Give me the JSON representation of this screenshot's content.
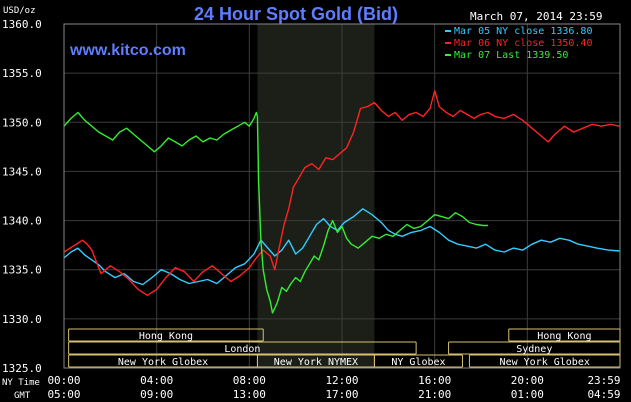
{
  "chart_data": {
    "type": "line",
    "title": "24 Hour Spot Gold (Bid)",
    "unit_label": "USD/oz",
    "watermark": "www.kitco.com",
    "timestamp": "March 07, 2014 23:59",
    "ylim": [
      1325,
      1360
    ],
    "y_ticks": [
      "1360.0",
      "1355.0",
      "1350.0",
      "1345.0",
      "1340.0",
      "1335.0",
      "1330.0",
      "1325.0"
    ],
    "x_row_ny_label": "NY Time",
    "x_row_gmt_label": "GMT",
    "x_ticks_ny": [
      "00:00",
      "04:00",
      "08:00",
      "12:00",
      "16:00",
      "20:00",
      "23:59"
    ],
    "x_ticks_gmt": [
      "05:00",
      "09:00",
      "13:00",
      "17:00",
      "21:00",
      "01:00",
      "04:59"
    ],
    "legend_position": "top-right",
    "highlight_session": [
      8.35,
      13.4
    ],
    "series": [
      {
        "name": "Mar 05 NY close 1336.80",
        "color": "#33ccff",
        "points": [
          [
            0.0,
            1336.2
          ],
          [
            0.3,
            1336.8
          ],
          [
            0.6,
            1337.2
          ],
          [
            0.9,
            1336.5
          ],
          [
            1.2,
            1336.0
          ],
          [
            1.5,
            1335.5
          ],
          [
            1.8,
            1334.8
          ],
          [
            2.2,
            1334.2
          ],
          [
            2.6,
            1334.6
          ],
          [
            3.0,
            1333.8
          ],
          [
            3.4,
            1333.5
          ],
          [
            3.8,
            1334.2
          ],
          [
            4.2,
            1335.0
          ],
          [
            4.6,
            1334.6
          ],
          [
            5.0,
            1334.0
          ],
          [
            5.4,
            1333.6
          ],
          [
            5.8,
            1333.8
          ],
          [
            6.2,
            1334.0
          ],
          [
            6.6,
            1333.6
          ],
          [
            7.0,
            1334.4
          ],
          [
            7.4,
            1335.2
          ],
          [
            7.8,
            1335.6
          ],
          [
            8.2,
            1336.6
          ],
          [
            8.5,
            1338.0
          ],
          [
            8.8,
            1337.2
          ],
          [
            9.1,
            1336.4
          ],
          [
            9.4,
            1337.0
          ],
          [
            9.7,
            1338.0
          ],
          [
            10.0,
            1336.6
          ],
          [
            10.3,
            1337.2
          ],
          [
            10.6,
            1338.4
          ],
          [
            10.9,
            1339.6
          ],
          [
            11.2,
            1340.2
          ],
          [
            11.5,
            1339.4
          ],
          [
            11.8,
            1339.0
          ],
          [
            12.1,
            1339.8
          ],
          [
            12.5,
            1340.4
          ],
          [
            12.9,
            1341.2
          ],
          [
            13.3,
            1340.6
          ],
          [
            13.7,
            1339.8
          ],
          [
            14.0,
            1339.0
          ],
          [
            14.3,
            1338.6
          ],
          [
            14.6,
            1338.4
          ],
          [
            15.0,
            1338.8
          ],
          [
            15.4,
            1339.0
          ],
          [
            15.8,
            1339.4
          ],
          [
            16.2,
            1338.8
          ],
          [
            16.6,
            1338.0
          ],
          [
            17.0,
            1337.6
          ],
          [
            17.4,
            1337.4
          ],
          [
            17.8,
            1337.2
          ],
          [
            18.2,
            1337.6
          ],
          [
            18.6,
            1337.0
          ],
          [
            19.0,
            1336.8
          ],
          [
            19.4,
            1337.2
          ],
          [
            19.8,
            1337.0
          ],
          [
            20.2,
            1337.6
          ],
          [
            20.6,
            1338.0
          ],
          [
            21.0,
            1337.8
          ],
          [
            21.4,
            1338.2
          ],
          [
            21.8,
            1338.0
          ],
          [
            22.2,
            1337.6
          ],
          [
            22.6,
            1337.4
          ],
          [
            23.0,
            1337.2
          ],
          [
            23.5,
            1337.0
          ],
          [
            23.98,
            1336.9
          ]
        ]
      },
      {
        "name": "Mar 06 NY close 1350.40",
        "color": "#ff2222",
        "points": [
          [
            0.0,
            1336.8
          ],
          [
            0.4,
            1337.4
          ],
          [
            0.8,
            1338.0
          ],
          [
            1.0,
            1337.6
          ],
          [
            1.2,
            1337.0
          ],
          [
            1.4,
            1335.8
          ],
          [
            1.6,
            1334.6
          ],
          [
            2.0,
            1335.4
          ],
          [
            2.4,
            1334.8
          ],
          [
            2.8,
            1334.0
          ],
          [
            3.2,
            1333.0
          ],
          [
            3.6,
            1332.4
          ],
          [
            4.0,
            1333.0
          ],
          [
            4.4,
            1334.2
          ],
          [
            4.8,
            1335.2
          ],
          [
            5.2,
            1334.8
          ],
          [
            5.6,
            1333.8
          ],
          [
            6.0,
            1334.8
          ],
          [
            6.4,
            1335.4
          ],
          [
            6.8,
            1334.6
          ],
          [
            7.2,
            1333.8
          ],
          [
            7.6,
            1334.4
          ],
          [
            8.0,
            1335.2
          ],
          [
            8.3,
            1336.2
          ],
          [
            8.6,
            1337.0
          ],
          [
            8.9,
            1336.4
          ],
          [
            9.1,
            1335.0
          ],
          [
            9.3,
            1337.4
          ],
          [
            9.5,
            1339.6
          ],
          [
            9.7,
            1341.2
          ],
          [
            9.9,
            1343.4
          ],
          [
            10.1,
            1344.2
          ],
          [
            10.4,
            1345.4
          ],
          [
            10.7,
            1345.8
          ],
          [
            11.0,
            1345.2
          ],
          [
            11.3,
            1346.4
          ],
          [
            11.6,
            1346.2
          ],
          [
            11.9,
            1346.8
          ],
          [
            12.2,
            1347.4
          ],
          [
            12.5,
            1349.0
          ],
          [
            12.8,
            1351.4
          ],
          [
            13.1,
            1351.6
          ],
          [
            13.4,
            1352.0
          ],
          [
            13.7,
            1351.2
          ],
          [
            14.0,
            1350.6
          ],
          [
            14.3,
            1351.0
          ],
          [
            14.6,
            1350.2
          ],
          [
            14.9,
            1350.8
          ],
          [
            15.2,
            1351.0
          ],
          [
            15.5,
            1350.6
          ],
          [
            15.8,
            1351.4
          ],
          [
            16.0,
            1353.2
          ],
          [
            16.2,
            1351.6
          ],
          [
            16.5,
            1351.0
          ],
          [
            16.8,
            1350.6
          ],
          [
            17.1,
            1351.2
          ],
          [
            17.4,
            1350.8
          ],
          [
            17.7,
            1350.4
          ],
          [
            18.0,
            1350.8
          ],
          [
            18.3,
            1351.0
          ],
          [
            18.6,
            1350.6
          ],
          [
            19.0,
            1350.4
          ],
          [
            19.4,
            1350.8
          ],
          [
            19.8,
            1350.2
          ],
          [
            20.2,
            1349.4
          ],
          [
            20.6,
            1348.6
          ],
          [
            20.9,
            1348.0
          ],
          [
            21.2,
            1348.8
          ],
          [
            21.6,
            1349.6
          ],
          [
            22.0,
            1349.0
          ],
          [
            22.4,
            1349.4
          ],
          [
            22.8,
            1349.8
          ],
          [
            23.2,
            1349.6
          ],
          [
            23.6,
            1349.8
          ],
          [
            23.98,
            1349.6
          ]
        ]
      },
      {
        "name": "Mar 07 Last 1339.50",
        "color": "#33ee33",
        "points": [
          [
            0.0,
            1349.6
          ],
          [
            0.3,
            1350.4
          ],
          [
            0.6,
            1351.0
          ],
          [
            0.9,
            1350.2
          ],
          [
            1.2,
            1349.6
          ],
          [
            1.5,
            1349.0
          ],
          [
            1.8,
            1348.6
          ],
          [
            2.1,
            1348.2
          ],
          [
            2.4,
            1349.0
          ],
          [
            2.7,
            1349.4
          ],
          [
            3.0,
            1348.8
          ],
          [
            3.3,
            1348.2
          ],
          [
            3.6,
            1347.6
          ],
          [
            3.9,
            1347.0
          ],
          [
            4.2,
            1347.6
          ],
          [
            4.5,
            1348.4
          ],
          [
            4.8,
            1348.0
          ],
          [
            5.1,
            1347.6
          ],
          [
            5.4,
            1348.2
          ],
          [
            5.7,
            1348.6
          ],
          [
            6.0,
            1348.0
          ],
          [
            6.3,
            1348.4
          ],
          [
            6.6,
            1348.2
          ],
          [
            6.9,
            1348.8
          ],
          [
            7.2,
            1349.2
          ],
          [
            7.5,
            1349.6
          ],
          [
            7.8,
            1350.0
          ],
          [
            8.0,
            1349.6
          ],
          [
            8.2,
            1350.4
          ],
          [
            8.3,
            1351.0
          ],
          [
            8.35,
            1350.6
          ],
          [
            8.4,
            1344.0
          ],
          [
            8.5,
            1338.0
          ],
          [
            8.6,
            1335.0
          ],
          [
            8.75,
            1333.0
          ],
          [
            8.9,
            1331.8
          ],
          [
            9.0,
            1330.6
          ],
          [
            9.2,
            1331.6
          ],
          [
            9.4,
            1333.2
          ],
          [
            9.6,
            1332.8
          ],
          [
            9.8,
            1333.6
          ],
          [
            10.0,
            1334.2
          ],
          [
            10.2,
            1333.8
          ],
          [
            10.4,
            1334.8
          ],
          [
            10.6,
            1335.6
          ],
          [
            10.8,
            1336.4
          ],
          [
            11.0,
            1336.0
          ],
          [
            11.2,
            1337.4
          ],
          [
            11.4,
            1339.0
          ],
          [
            11.6,
            1340.0
          ],
          [
            11.8,
            1338.8
          ],
          [
            12.0,
            1339.4
          ],
          [
            12.2,
            1338.2
          ],
          [
            12.4,
            1337.6
          ],
          [
            12.7,
            1337.2
          ],
          [
            13.0,
            1337.8
          ],
          [
            13.3,
            1338.4
          ],
          [
            13.6,
            1338.2
          ],
          [
            13.9,
            1338.6
          ],
          [
            14.2,
            1338.4
          ],
          [
            14.5,
            1339.0
          ],
          [
            14.8,
            1339.6
          ],
          [
            15.1,
            1339.2
          ],
          [
            15.4,
            1339.4
          ],
          [
            15.7,
            1340.0
          ],
          [
            16.0,
            1340.6
          ],
          [
            16.3,
            1340.4
          ],
          [
            16.6,
            1340.2
          ],
          [
            16.9,
            1340.8
          ],
          [
            17.2,
            1340.4
          ],
          [
            17.5,
            1339.8
          ],
          [
            17.8,
            1339.6
          ],
          [
            18.1,
            1339.5
          ],
          [
            18.3,
            1339.5
          ]
        ]
      }
    ],
    "session_bands": [
      {
        "row": 1,
        "label": "Hong Kong",
        "start": 0.2,
        "end": 8.6
      },
      {
        "row": 1,
        "label": "Hong Kong",
        "start": 19.2,
        "end": 24.0
      },
      {
        "row": 2,
        "label": "London",
        "start": 0.2,
        "end": 15.2
      },
      {
        "row": 2,
        "label": "Sydney",
        "start": 16.6,
        "end": 24.0
      },
      {
        "row": 3,
        "label": "New York Globex",
        "start": 0.2,
        "end": 8.35
      },
      {
        "row": 3,
        "label": "New York NYMEX",
        "start": 8.35,
        "end": 13.4
      },
      {
        "row": 3,
        "label": "NY Globex",
        "start": 13.4,
        "end": 17.2
      },
      {
        "row": 3,
        "label": "New York Globex",
        "start": 17.5,
        "end": 24.0
      }
    ]
  }
}
